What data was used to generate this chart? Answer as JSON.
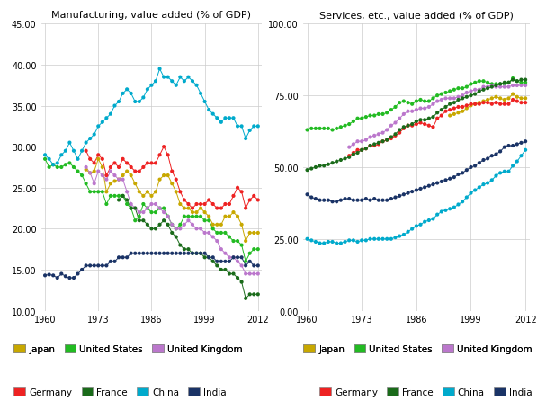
{
  "title_left": "Manufacturing, value added (% of GDP)",
  "title_right": "Services, etc., value added (% of GDP)",
  "countries": [
    "Japan",
    "United States",
    "United Kingdom",
    "Germany",
    "France",
    "China",
    "India"
  ],
  "colors": {
    "Japan": "#C8A800",
    "United States": "#22BB22",
    "United Kingdom": "#BB77CC",
    "Germany": "#EE2222",
    "France": "#1A6B1A",
    "China": "#00AACC",
    "India": "#1A3366"
  },
  "mfg_ylim": [
    10.0,
    45.0
  ],
  "mfg_yticks": [
    10.0,
    15.0,
    20.0,
    25.0,
    30.0,
    35.0,
    40.0,
    45.0
  ],
  "svc_ylim": [
    0.0,
    100.0
  ],
  "svc_yticks": [
    0.0,
    25.0,
    50.0,
    75.0,
    100.0
  ],
  "xticks": [
    1960,
    1973,
    1986,
    1999,
    2012
  ],
  "xlim": [
    1959,
    2013
  ],
  "manufacturing": {
    "Japan": [
      1970,
      1971,
      1972,
      1973,
      1974,
      1975,
      1976,
      1977,
      1978,
      1979,
      1980,
      1981,
      1982,
      1983,
      1984,
      1985,
      1986,
      1987,
      1988,
      1989,
      1990,
      1991,
      1992,
      1993,
      1994,
      1995,
      1996,
      1997,
      1998,
      1999,
      2000,
      2001,
      2002,
      2003,
      2004,
      2005,
      2006,
      2007,
      2008,
      2009,
      2010,
      2011,
      2012
    ],
    "Japan_v": [
      27.2,
      26.8,
      27.0,
      28.5,
      27.5,
      24.5,
      25.5,
      25.8,
      26.0,
      26.5,
      27.0,
      26.5,
      25.5,
      24.5,
      24.0,
      24.5,
      24.0,
      24.5,
      26.0,
      26.5,
      26.5,
      25.5,
      24.5,
      23.0,
      22.5,
      22.5,
      22.0,
      22.0,
      22.5,
      22.0,
      21.5,
      20.5,
      20.5,
      20.5,
      21.5,
      21.5,
      22.0,
      21.5,
      20.5,
      18.5,
      19.5,
      19.5,
      19.5
    ],
    "United States": [
      1960,
      1961,
      1962,
      1963,
      1964,
      1965,
      1966,
      1967,
      1968,
      1969,
      1970,
      1971,
      1972,
      1973,
      1974,
      1975,
      1976,
      1977,
      1978,
      1979,
      1980,
      1981,
      1982,
      1983,
      1984,
      1985,
      1986,
      1987,
      1988,
      1989,
      1990,
      1991,
      1992,
      1993,
      1994,
      1995,
      1996,
      1997,
      1998,
      1999,
      2000,
      2001,
      2002,
      2003,
      2004,
      2005,
      2006,
      2007,
      2008,
      2009,
      2010,
      2011,
      2012
    ],
    "United States_v": [
      28.5,
      27.5,
      27.8,
      27.5,
      27.5,
      27.8,
      28.0,
      27.5,
      27.0,
      26.5,
      25.5,
      24.5,
      24.5,
      24.5,
      24.5,
      23.0,
      24.0,
      24.0,
      24.0,
      24.0,
      23.0,
      22.5,
      21.0,
      21.5,
      23.0,
      22.5,
      22.0,
      22.0,
      22.5,
      22.5,
      21.5,
      20.5,
      20.0,
      20.5,
      21.5,
      21.5,
      21.5,
      21.5,
      21.5,
      21.0,
      21.0,
      20.0,
      19.5,
      19.5,
      19.5,
      19.0,
      18.5,
      18.5,
      18.0,
      16.0,
      17.0,
      17.5,
      17.5
    ],
    "United Kingdom": [
      1970,
      1971,
      1972,
      1973,
      1974,
      1975,
      1976,
      1977,
      1978,
      1979,
      1980,
      1981,
      1982,
      1983,
      1984,
      1985,
      1986,
      1987,
      1988,
      1989,
      1990,
      1991,
      1992,
      1993,
      1994,
      1995,
      1996,
      1997,
      1998,
      1999,
      2000,
      2001,
      2002,
      2003,
      2004,
      2005,
      2006,
      2007,
      2008,
      2009,
      2010,
      2011,
      2012
    ],
    "United Kingdom_v": [
      27.5,
      26.8,
      25.5,
      27.0,
      26.5,
      26.0,
      27.0,
      26.5,
      26.0,
      26.0,
      24.5,
      23.0,
      22.5,
      22.0,
      22.0,
      22.5,
      23.0,
      23.0,
      22.5,
      22.0,
      21.5,
      20.5,
      20.0,
      20.0,
      20.5,
      21.0,
      20.5,
      20.0,
      20.0,
      19.5,
      19.5,
      19.0,
      18.5,
      17.5,
      17.0,
      16.5,
      16.5,
      16.0,
      15.5,
      14.5,
      14.5,
      14.5,
      14.5
    ],
    "Germany": [
      1970,
      1971,
      1972,
      1973,
      1974,
      1975,
      1976,
      1977,
      1978,
      1979,
      1980,
      1981,
      1982,
      1983,
      1984,
      1985,
      1986,
      1987,
      1988,
      1989,
      1990,
      1991,
      1992,
      1993,
      1994,
      1995,
      1996,
      1997,
      1998,
      1999,
      2000,
      2001,
      2002,
      2003,
      2004,
      2005,
      2006,
      2007,
      2008,
      2009,
      2010,
      2011,
      2012
    ],
    "Germany_v": [
      29.5,
      28.5,
      28.0,
      29.0,
      28.5,
      26.5,
      27.5,
      28.0,
      27.5,
      28.5,
      28.0,
      27.5,
      27.0,
      27.0,
      27.5,
      28.0,
      28.0,
      28.0,
      29.0,
      30.0,
      29.0,
      27.0,
      26.0,
      24.5,
      23.5,
      23.0,
      22.5,
      23.0,
      23.0,
      23.0,
      23.5,
      23.0,
      22.5,
      22.5,
      23.0,
      23.0,
      24.0,
      25.0,
      24.5,
      22.5,
      23.5,
      24.0,
      23.5
    ],
    "France": [
      1978,
      1979,
      1980,
      1981,
      1982,
      1983,
      1984,
      1985,
      1986,
      1987,
      1988,
      1989,
      1990,
      1991,
      1992,
      1993,
      1994,
      1995,
      1996,
      1997,
      1998,
      1999,
      2000,
      2001,
      2002,
      2003,
      2004,
      2005,
      2006,
      2007,
      2008,
      2009,
      2010,
      2011,
      2012
    ],
    "France_v": [
      23.5,
      24.0,
      23.5,
      22.5,
      22.5,
      21.0,
      21.0,
      20.5,
      20.0,
      20.0,
      20.5,
      21.0,
      20.5,
      19.5,
      19.0,
      18.0,
      17.5,
      17.5,
      17.0,
      17.0,
      17.0,
      16.5,
      16.5,
      16.0,
      15.5,
      15.0,
      15.0,
      14.5,
      14.5,
      14.0,
      13.5,
      11.5,
      12.0,
      12.0,
      12.0
    ],
    "China": [
      1960,
      1961,
      1962,
      1963,
      1964,
      1965,
      1966,
      1967,
      1968,
      1969,
      1970,
      1971,
      1972,
      1973,
      1974,
      1975,
      1976,
      1977,
      1978,
      1979,
      1980,
      1981,
      1982,
      1983,
      1984,
      1985,
      1986,
      1987,
      1988,
      1989,
      1990,
      1991,
      1992,
      1993,
      1994,
      1995,
      1996,
      1997,
      1998,
      1999,
      2000,
      2001,
      2002,
      2003,
      2004,
      2005,
      2006,
      2007,
      2008,
      2009,
      2010,
      2011,
      2012
    ],
    "China_v": [
      29.0,
      28.5,
      27.8,
      28.0,
      29.0,
      29.5,
      30.5,
      29.5,
      28.5,
      29.5,
      30.5,
      31.0,
      31.5,
      32.5,
      33.0,
      33.5,
      34.0,
      35.0,
      35.5,
      36.5,
      37.0,
      36.5,
      35.5,
      35.5,
      36.0,
      37.0,
      37.5,
      38.0,
      39.5,
      38.5,
      38.5,
      38.0,
      37.5,
      38.5,
      38.0,
      38.5,
      38.0,
      37.5,
      36.5,
      35.5,
      34.5,
      34.0,
      33.5,
      33.0,
      33.5,
      33.5,
      33.5,
      32.5,
      32.5,
      31.0,
      32.0,
      32.5,
      32.5
    ],
    "India": [
      1960,
      1961,
      1962,
      1963,
      1964,
      1965,
      1966,
      1967,
      1968,
      1969,
      1970,
      1971,
      1972,
      1973,
      1974,
      1975,
      1976,
      1977,
      1978,
      1979,
      1980,
      1981,
      1982,
      1983,
      1984,
      1985,
      1986,
      1987,
      1988,
      1989,
      1990,
      1991,
      1992,
      1993,
      1994,
      1995,
      1996,
      1997,
      1998,
      1999,
      2000,
      2001,
      2002,
      2003,
      2004,
      2005,
      2006,
      2007,
      2008,
      2009,
      2010,
      2011,
      2012
    ],
    "India_v": [
      14.3,
      14.4,
      14.3,
      14.0,
      14.5,
      14.2,
      14.0,
      14.0,
      14.5,
      15.0,
      15.5,
      15.5,
      15.5,
      15.5,
      15.5,
      15.5,
      16.0,
      16.0,
      16.5,
      16.5,
      16.5,
      17.0,
      17.0,
      17.0,
      17.0,
      17.0,
      17.0,
      17.0,
      17.0,
      17.0,
      17.0,
      17.0,
      17.0,
      17.0,
      17.0,
      17.0,
      17.0,
      17.0,
      17.0,
      17.0,
      16.5,
      16.5,
      16.0,
      16.0,
      16.0,
      16.0,
      16.5,
      16.5,
      16.5,
      15.5,
      16.0,
      15.5,
      15.5
    ]
  },
  "services": {
    "Japan": [
      1994,
      1995,
      1996,
      1997,
      1998,
      1999,
      2000,
      2001,
      2002,
      2003,
      2004,
      2005,
      2006,
      2007,
      2008,
      2009,
      2010,
      2011,
      2012
    ],
    "Japan_v": [
      68.0,
      68.5,
      69.0,
      69.5,
      70.5,
      71.5,
      72.0,
      72.5,
      73.0,
      73.5,
      74.0,
      74.5,
      74.0,
      73.5,
      74.0,
      75.5,
      74.5,
      74.0,
      74.0
    ],
    "United States": [
      1960,
      1961,
      1962,
      1963,
      1964,
      1965,
      1966,
      1967,
      1968,
      1969,
      1970,
      1971,
      1972,
      1973,
      1974,
      1975,
      1976,
      1977,
      1978,
      1979,
      1980,
      1981,
      1982,
      1983,
      1984,
      1985,
      1986,
      1987,
      1988,
      1989,
      1990,
      1991,
      1992,
      1993,
      1994,
      1995,
      1996,
      1997,
      1998,
      1999,
      2000,
      2001,
      2002,
      2003,
      2004,
      2005,
      2006,
      2007,
      2008,
      2009,
      2010,
      2011,
      2012
    ],
    "United States_v": [
      63.0,
      63.5,
      63.5,
      63.5,
      63.5,
      63.5,
      63.0,
      63.5,
      64.0,
      64.5,
      65.0,
      66.0,
      67.0,
      67.0,
      67.5,
      68.0,
      68.0,
      68.5,
      68.5,
      69.0,
      70.0,
      71.0,
      72.5,
      73.0,
      72.5,
      72.0,
      73.0,
      73.5,
      73.0,
      73.0,
      74.0,
      75.0,
      75.5,
      76.0,
      76.5,
      77.0,
      77.5,
      77.5,
      78.0,
      79.0,
      79.5,
      80.0,
      80.0,
      79.5,
      79.0,
      79.0,
      79.0,
      79.0,
      79.5,
      81.0,
      80.0,
      79.5,
      79.5
    ],
    "United Kingdom": [
      1970,
      1971,
      1972,
      1973,
      1974,
      1975,
      1976,
      1977,
      1978,
      1979,
      1980,
      1981,
      1982,
      1983,
      1984,
      1985,
      1986,
      1987,
      1988,
      1989,
      1990,
      1991,
      1992,
      1993,
      1994,
      1995,
      1996,
      1997,
      1998,
      1999,
      2000,
      2001,
      2002,
      2003,
      2004,
      2005,
      2006,
      2007,
      2008,
      2009,
      2010,
      2011,
      2012
    ],
    "United Kingdom_v": [
      57.0,
      58.0,
      59.0,
      59.0,
      59.5,
      60.5,
      61.0,
      61.5,
      62.0,
      63.0,
      64.5,
      65.5,
      67.0,
      68.5,
      69.5,
      69.5,
      70.0,
      70.5,
      70.5,
      71.0,
      72.0,
      73.0,
      73.5,
      74.0,
      74.0,
      74.0,
      74.5,
      75.0,
      76.0,
      76.5,
      77.0,
      77.0,
      78.0,
      78.0,
      78.5,
      78.0,
      78.0,
      78.0,
      78.0,
      78.5,
      78.5,
      78.5,
      78.5
    ],
    "Germany": [
      1970,
      1971,
      1972,
      1973,
      1974,
      1975,
      1976,
      1977,
      1978,
      1979,
      1980,
      1981,
      1982,
      1983,
      1984,
      1985,
      1986,
      1987,
      1988,
      1989,
      1990,
      1991,
      1992,
      1993,
      1994,
      1995,
      1996,
      1997,
      1998,
      1999,
      2000,
      2001,
      2002,
      2003,
      2004,
      2005,
      2006,
      2007,
      2008,
      2009,
      2010,
      2011,
      2012
    ],
    "Germany_v": [
      54.0,
      55.0,
      56.0,
      56.0,
      56.5,
      57.5,
      57.5,
      58.0,
      59.0,
      59.5,
      60.0,
      61.0,
      62.0,
      63.5,
      64.5,
      64.5,
      65.0,
      65.5,
      65.0,
      64.5,
      64.0,
      67.0,
      68.0,
      69.5,
      70.0,
      70.5,
      71.0,
      71.0,
      71.5,
      72.0,
      72.0,
      72.0,
      72.5,
      72.5,
      72.0,
      72.5,
      72.0,
      72.0,
      72.0,
      73.5,
      73.0,
      72.5,
      72.5
    ],
    "France": [
      1960,
      1961,
      1962,
      1963,
      1964,
      1965,
      1966,
      1967,
      1968,
      1969,
      1970,
      1971,
      1972,
      1973,
      1974,
      1975,
      1976,
      1977,
      1978,
      1979,
      1980,
      1981,
      1982,
      1983,
      1984,
      1985,
      1986,
      1987,
      1988,
      1989,
      1990,
      1991,
      1992,
      1993,
      1994,
      1995,
      1996,
      1997,
      1998,
      1999,
      2000,
      2001,
      2002,
      2003,
      2004,
      2005,
      2006,
      2007,
      2008,
      2009,
      2010,
      2011,
      2012
    ],
    "France_v": [
      49.0,
      49.5,
      50.0,
      50.5,
      50.5,
      51.0,
      51.5,
      52.0,
      52.5,
      53.0,
      53.5,
      54.5,
      55.0,
      56.0,
      56.5,
      57.5,
      58.0,
      58.5,
      59.0,
      59.5,
      60.5,
      61.5,
      63.0,
      64.0,
      64.5,
      65.0,
      66.0,
      66.5,
      66.5,
      67.0,
      67.5,
      69.0,
      70.0,
      71.0,
      72.0,
      72.5,
      73.5,
      74.0,
      74.5,
      75.0,
      75.5,
      76.5,
      77.0,
      77.5,
      78.0,
      78.5,
      79.0,
      79.5,
      79.5,
      80.5,
      80.0,
      80.5,
      80.5
    ],
    "China": [
      1960,
      1961,
      1962,
      1963,
      1964,
      1965,
      1966,
      1967,
      1968,
      1969,
      1970,
      1971,
      1972,
      1973,
      1974,
      1975,
      1976,
      1977,
      1978,
      1979,
      1980,
      1981,
      1982,
      1983,
      1984,
      1985,
      1986,
      1987,
      1988,
      1989,
      1990,
      1991,
      1992,
      1993,
      1994,
      1995,
      1996,
      1997,
      1998,
      1999,
      2000,
      2001,
      2002,
      2003,
      2004,
      2005,
      2006,
      2007,
      2008,
      2009,
      2010,
      2011,
      2012
    ],
    "China_v": [
      25.0,
      24.5,
      24.0,
      23.5,
      23.5,
      24.0,
      24.0,
      23.5,
      23.5,
      24.0,
      24.5,
      24.5,
      24.0,
      24.5,
      24.5,
      25.0,
      25.0,
      25.0,
      25.0,
      25.0,
      25.0,
      25.5,
      26.0,
      26.5,
      27.5,
      28.5,
      29.5,
      30.0,
      31.0,
      31.5,
      32.0,
      33.5,
      34.5,
      35.0,
      35.5,
      36.0,
      37.0,
      38.0,
      39.5,
      41.0,
      42.0,
      43.0,
      44.0,
      44.5,
      45.5,
      47.0,
      48.0,
      48.5,
      48.5,
      50.5,
      52.0,
      54.0,
      56.0
    ],
    "India": [
      1960,
      1961,
      1962,
      1963,
      1964,
      1965,
      1966,
      1967,
      1968,
      1969,
      1970,
      1971,
      1972,
      1973,
      1974,
      1975,
      1976,
      1977,
      1978,
      1979,
      1980,
      1981,
      1982,
      1983,
      1984,
      1985,
      1986,
      1987,
      1988,
      1989,
      1990,
      1991,
      1992,
      1993,
      1994,
      1995,
      1996,
      1997,
      1998,
      1999,
      2000,
      2001,
      2002,
      2003,
      2004,
      2005,
      2006,
      2007,
      2008,
      2009,
      2010,
      2011,
      2012
    ],
    "India_v": [
      40.5,
      39.5,
      39.0,
      38.5,
      38.5,
      38.5,
      38.0,
      38.0,
      38.5,
      39.0,
      39.0,
      38.5,
      38.5,
      38.5,
      39.0,
      38.5,
      39.0,
      38.5,
      38.5,
      38.5,
      39.0,
      39.5,
      40.0,
      40.5,
      41.0,
      41.5,
      42.0,
      42.5,
      43.0,
      43.5,
      44.0,
      44.5,
      45.0,
      45.5,
      46.0,
      46.5,
      47.5,
      48.0,
      49.0,
      50.0,
      50.5,
      51.5,
      52.5,
      53.0,
      54.0,
      54.5,
      55.5,
      57.0,
      57.5,
      57.5,
      58.0,
      58.5,
      59.0
    ]
  },
  "legend_colors": {
    "Japan": "#C8A800",
    "United States": "#22BB22",
    "United Kingdom": "#BB77CC",
    "Germany": "#EE2222",
    "France": "#1A6B1A",
    "China": "#00AACC",
    "India": "#1A3366"
  },
  "legend_order_row1": [
    "Japan",
    "United States",
    "United Kingdom"
  ],
  "legend_order_row2": [
    "Germany",
    "France",
    "China",
    "India"
  ]
}
